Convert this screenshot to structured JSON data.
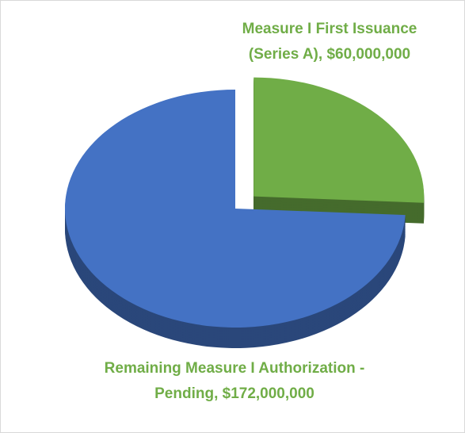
{
  "chart_data": {
    "type": "pie",
    "values": [
      60000000,
      172000000
    ],
    "value_labels": [
      "Measure I First Issuance (Series A), $60,000,000",
      "Remaining Measure I Authorization - Pending, $172,000,000"
    ],
    "colors": [
      "#70ad47",
      "#4472c4"
    ],
    "exploded": [
      true,
      false
    ]
  }
}
